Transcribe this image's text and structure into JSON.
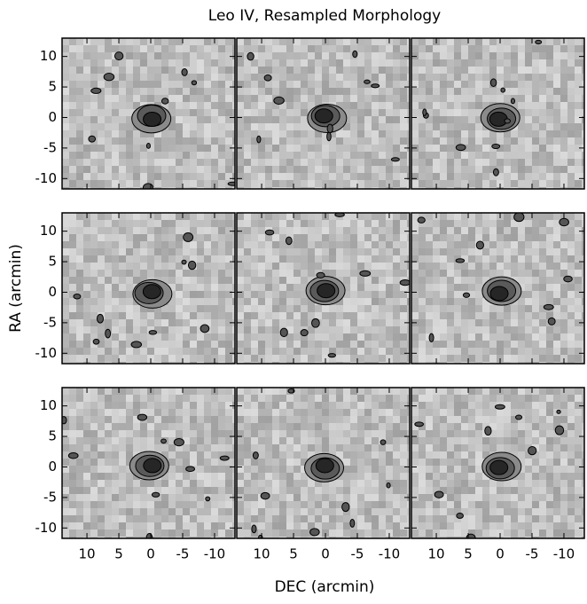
{
  "chart_data": {
    "type": "image",
    "title": "Leo IV, Resampled Morphology",
    "xlabel": "DEC (arcmin)",
    "ylabel": "RA (arcmin)",
    "rows": 3,
    "cols": 3,
    "xlim": [
      13.9,
      -13.2
    ],
    "ylim": [
      -11.7,
      13
    ],
    "xticks": [
      10,
      5,
      0,
      -5,
      -10
    ],
    "yticks": [
      10,
      5,
      0,
      -5,
      -10
    ]
  }
}
